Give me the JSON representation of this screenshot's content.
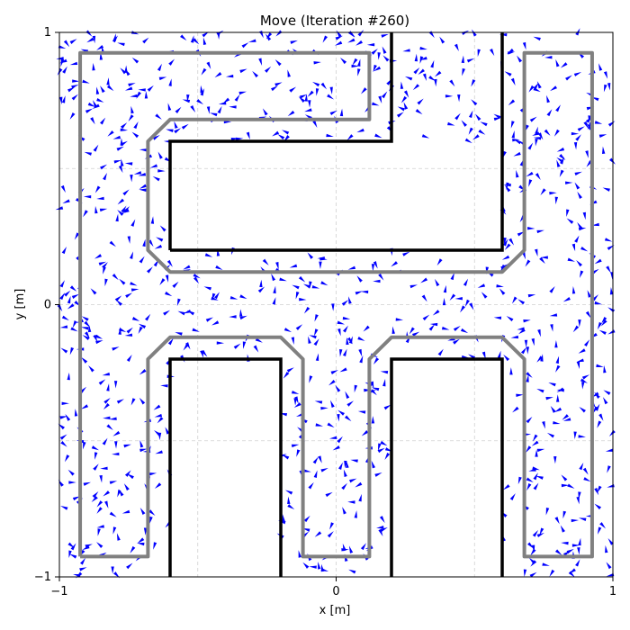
{
  "chart_data": {
    "type": "scatter",
    "title": "Move (Iteration #260)",
    "xlabel": "x [m]",
    "ylabel": "y [m]",
    "xlim": [
      -1,
      1
    ],
    "ylim": [
      -1,
      1
    ],
    "x_ticks": [
      -1,
      0,
      1
    ],
    "y_ticks": [
      -1,
      0,
      1
    ],
    "x_tick_labels": [
      "−1",
      "0",
      "1"
    ],
    "y_tick_labels": [
      "−1",
      "0",
      "1"
    ],
    "minor_grid_x": [
      -0.5,
      0.5
    ],
    "minor_grid_y": [
      -0.5,
      0.5
    ],
    "grid": true,
    "particle_color": "#0000ff",
    "particle_count": 1000,
    "walls": [
      [
        [
          -0.6,
          -1
        ],
        [
          -0.6,
          -0.2
        ],
        [
          -0.2,
          -0.2
        ],
        [
          -0.2,
          -1
        ]
      ],
      [
        [
          0.2,
          -1
        ],
        [
          0.2,
          -0.2
        ],
        [
          0.6,
          -0.2
        ],
        [
          0.6,
          -1
        ]
      ],
      [
        [
          -0.6,
          0.2
        ],
        [
          -0.6,
          0.6
        ],
        [
          0.2,
          0.6
        ],
        [
          0.2,
          1
        ]
      ],
      [
        [
          -0.6,
          0.2
        ],
        [
          0.6,
          0.2
        ],
        [
          0.6,
          1
        ]
      ]
    ],
    "wall_color": "#000000",
    "corridor_color": "#808080"
  }
}
